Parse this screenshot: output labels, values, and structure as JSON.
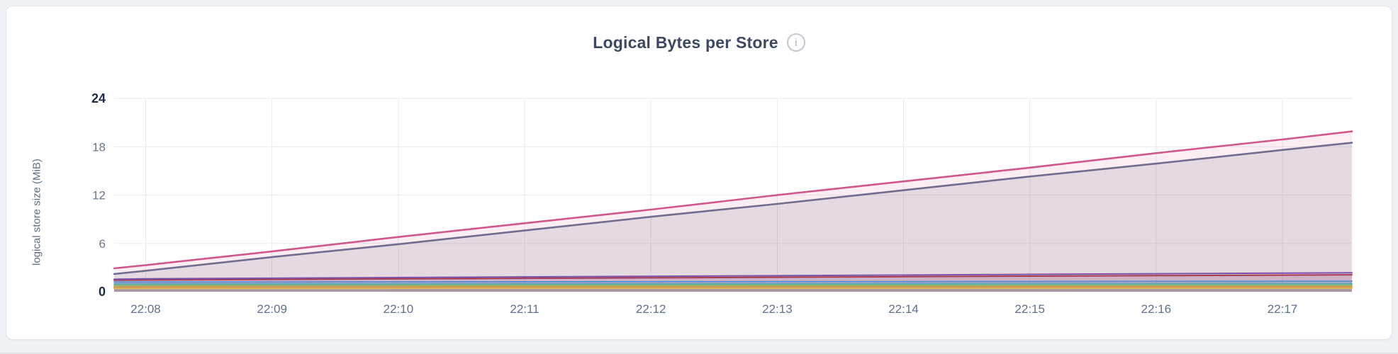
{
  "icons": {
    "info": "i"
  },
  "chart_data": {
    "type": "area",
    "title": "Logical Bytes per Store",
    "ylabel": "logical store size (MiB)",
    "xlabel": "",
    "x_ticks": [
      "22:08",
      "22:09",
      "22:10",
      "22:11",
      "22:12",
      "22:13",
      "22:14",
      "22:15",
      "22:16",
      "22:17"
    ],
    "y_ticks": [
      0,
      6,
      12,
      18,
      24
    ],
    "ylim": [
      0,
      24
    ],
    "x_domain_minutes": [
      -0.25,
      9.55
    ],
    "t": [
      -0.25,
      0,
      1,
      2,
      3,
      4,
      5,
      6,
      7,
      8,
      9,
      9.55
    ],
    "grid": true,
    "legend": "none",
    "colors": {
      "grid": "#e7eaef",
      "tick_label": "#68788e",
      "tick_label_bold": "#1c2b46",
      "x_tick_label": "#5e7090"
    },
    "series": [
      {
        "name": "series-1-pink",
        "color": "#d0568c",
        "fill_opacity": 0.1,
        "stroke_width": 2.6,
        "values": [
          2.9,
          3.3,
          5.0,
          6.8,
          8.5,
          10.2,
          12.0,
          13.7,
          15.4,
          17.2,
          18.9,
          19.9
        ]
      },
      {
        "name": "series-2-slate",
        "color": "#716d90",
        "fill_opacity": 0.16,
        "stroke_width": 2.6,
        "values": [
          2.2,
          2.6,
          4.3,
          5.9,
          7.6,
          9.3,
          10.9,
          12.6,
          14.3,
          15.9,
          17.6,
          18.5
        ]
      },
      {
        "name": "series-3-purple",
        "color": "#7b52a8",
        "fill_opacity": 0.15,
        "stroke_width": 2,
        "values": [
          1.55,
          1.6,
          1.68,
          1.76,
          1.84,
          1.91,
          1.99,
          2.07,
          2.15,
          2.23,
          2.31,
          2.35
        ]
      },
      {
        "name": "series-4-maroon",
        "color": "#a83b52",
        "fill_opacity": 0.15,
        "stroke_width": 2,
        "values": [
          1.43,
          1.45,
          1.52,
          1.59,
          1.66,
          1.72,
          1.79,
          1.86,
          1.93,
          2.0,
          2.06,
          2.1
        ]
      },
      {
        "name": "series-5-blue",
        "color": "#5c8fd6",
        "fill_opacity": 0.15,
        "stroke_width": 2,
        "values": [
          1.2,
          1.2,
          1.21,
          1.22,
          1.23,
          1.24,
          1.25,
          1.26,
          1.27,
          1.28,
          1.29,
          1.3
        ]
      },
      {
        "name": "series-6-teal",
        "color": "#56aab4",
        "fill_opacity": 0.15,
        "stroke_width": 2,
        "values": [
          0.95,
          0.95,
          0.96,
          0.96,
          0.97,
          0.97,
          0.98,
          0.98,
          0.99,
          0.99,
          1.0,
          1.0
        ]
      },
      {
        "name": "series-7-green",
        "color": "#8fb85a",
        "fill_opacity": 0.15,
        "stroke_width": 2,
        "values": [
          0.75,
          0.75,
          0.76,
          0.76,
          0.77,
          0.77,
          0.78,
          0.78,
          0.79,
          0.79,
          0.8,
          0.8
        ]
      },
      {
        "name": "series-8-orange",
        "color": "#e0924f",
        "fill_opacity": 0.15,
        "stroke_width": 2,
        "values": [
          0.55,
          0.55,
          0.56,
          0.56,
          0.57,
          0.57,
          0.58,
          0.58,
          0.59,
          0.59,
          0.6,
          0.6
        ]
      },
      {
        "name": "series-9-yellow",
        "color": "#d9bd55",
        "fill_opacity": 0.15,
        "stroke_width": 2,
        "values": [
          0.4,
          0.4,
          0.4,
          0.41,
          0.41,
          0.41,
          0.42,
          0.42,
          0.42,
          0.43,
          0.43,
          0.43
        ]
      }
    ]
  }
}
